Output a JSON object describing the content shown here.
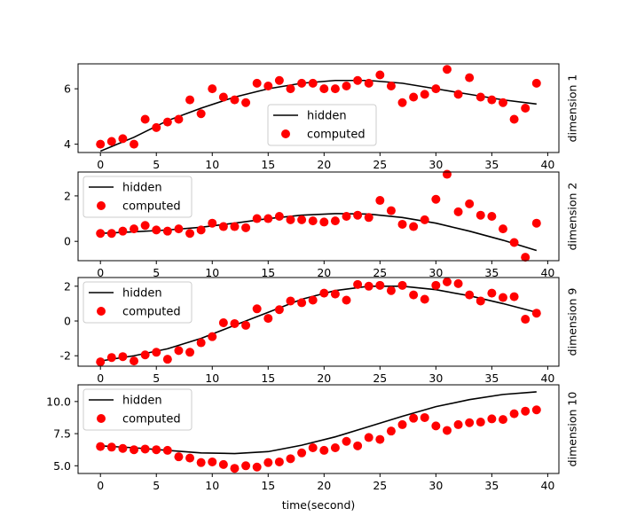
{
  "colors": {
    "hidden": "#000000",
    "computed": "#ff0000",
    "background": "#ffffff",
    "frame": "#000000",
    "legend_border": "#cccccc"
  },
  "chart_data": [
    {
      "type": "scatter",
      "ylabel": "dimension 1",
      "xlim": [
        -2,
        41
      ],
      "ylim": [
        3.7,
        6.9
      ],
      "xticks": [
        0,
        5,
        10,
        15,
        20,
        25,
        30,
        35,
        40
      ],
      "yticks": [
        4,
        6
      ],
      "legend_position": "lower-center",
      "series": [
        {
          "name": "hidden",
          "kind": "line",
          "x": [
            0,
            3,
            6,
            9,
            12,
            15,
            18,
            21,
            24,
            27,
            30,
            33,
            36,
            39
          ],
          "y": [
            3.75,
            4.25,
            4.85,
            5.3,
            5.7,
            6.0,
            6.2,
            6.3,
            6.3,
            6.2,
            6.0,
            5.8,
            5.6,
            5.45
          ]
        },
        {
          "name": "computed",
          "kind": "scatter",
          "x": [
            0,
            1,
            2,
            3,
            4,
            5,
            6,
            7,
            8,
            9,
            10,
            11,
            12,
            13,
            14,
            15,
            16,
            17,
            18,
            19,
            20,
            21,
            22,
            23,
            24,
            25,
            26,
            27,
            28,
            29,
            30,
            31,
            32,
            33,
            34,
            35,
            36,
            37,
            38,
            39
          ],
          "y": [
            4.0,
            4.1,
            4.2,
            4.0,
            4.9,
            4.6,
            4.8,
            4.9,
            5.6,
            5.1,
            6.0,
            5.7,
            5.6,
            5.5,
            6.2,
            6.1,
            6.3,
            6.0,
            6.2,
            6.2,
            6.0,
            6.0,
            6.1,
            6.3,
            6.2,
            6.5,
            6.1,
            5.5,
            5.7,
            5.8,
            6.0,
            6.7,
            5.8,
            6.4,
            5.7,
            5.6,
            5.5,
            4.9,
            5.3,
            6.2
          ]
        }
      ]
    },
    {
      "type": "scatter",
      "ylabel": "dimension 2",
      "xlim": [
        -2,
        41
      ],
      "ylim": [
        -0.85,
        3.05
      ],
      "xticks": [
        0,
        5,
        10,
        15,
        20,
        25,
        30,
        35,
        40
      ],
      "yticks": [
        0,
        2
      ],
      "legend_position": "upper-left",
      "series": [
        {
          "name": "hidden",
          "kind": "line",
          "x": [
            0,
            3,
            6,
            9,
            12,
            15,
            18,
            21,
            24,
            27,
            30,
            33,
            36,
            39
          ],
          "y": [
            0.35,
            0.42,
            0.5,
            0.62,
            0.8,
            1.0,
            1.15,
            1.22,
            1.2,
            1.05,
            0.8,
            0.45,
            0.05,
            -0.4
          ]
        },
        {
          "name": "computed",
          "kind": "scatter",
          "x": [
            0,
            1,
            2,
            3,
            4,
            5,
            6,
            7,
            8,
            9,
            10,
            11,
            12,
            13,
            14,
            15,
            16,
            17,
            18,
            19,
            20,
            21,
            22,
            23,
            24,
            25,
            26,
            27,
            28,
            29,
            30,
            31,
            32,
            33,
            34,
            35,
            36,
            37,
            38,
            39
          ],
          "y": [
            0.35,
            0.35,
            0.45,
            0.55,
            0.7,
            0.5,
            0.45,
            0.55,
            0.35,
            0.5,
            0.8,
            0.65,
            0.65,
            0.6,
            1.0,
            1.0,
            1.1,
            0.95,
            0.95,
            0.9,
            0.85,
            0.9,
            1.1,
            1.15,
            1.05,
            1.8,
            1.35,
            0.75,
            0.65,
            0.95,
            1.85,
            2.95,
            1.3,
            1.65,
            1.15,
            1.1,
            0.55,
            -0.05,
            -0.7,
            0.8
          ]
        }
      ]
    },
    {
      "type": "scatter",
      "ylabel": "dimension 9",
      "xlim": [
        -2,
        41
      ],
      "ylim": [
        -2.6,
        2.5
      ],
      "xticks": [
        0,
        5,
        10,
        15,
        20,
        25,
        30,
        35,
        40
      ],
      "yticks": [
        -2,
        0,
        2
      ],
      "legend_position": "upper-left",
      "series": [
        {
          "name": "hidden",
          "kind": "line",
          "x": [
            0,
            3,
            6,
            9,
            12,
            15,
            18,
            21,
            24,
            27,
            30,
            33,
            36,
            39
          ],
          "y": [
            -2.3,
            -2.0,
            -1.6,
            -1.0,
            -0.25,
            0.5,
            1.25,
            1.75,
            2.0,
            2.0,
            1.8,
            1.45,
            1.0,
            0.5
          ]
        },
        {
          "name": "computed",
          "kind": "scatter",
          "x": [
            0,
            1,
            2,
            3,
            4,
            5,
            6,
            7,
            8,
            9,
            10,
            11,
            12,
            13,
            14,
            15,
            16,
            17,
            18,
            19,
            20,
            21,
            22,
            23,
            24,
            25,
            26,
            27,
            28,
            29,
            30,
            31,
            32,
            33,
            34,
            35,
            36,
            37,
            38,
            39
          ],
          "y": [
            -2.35,
            -2.1,
            -2.05,
            -2.3,
            -1.95,
            -1.8,
            -2.2,
            -1.7,
            -1.8,
            -1.25,
            -0.9,
            -0.1,
            -0.15,
            -0.25,
            0.7,
            0.15,
            0.65,
            1.15,
            1.05,
            1.2,
            1.6,
            1.55,
            1.2,
            2.1,
            2.0,
            2.05,
            1.75,
            2.05,
            1.5,
            1.25,
            2.05,
            2.25,
            2.15,
            1.5,
            1.15,
            1.6,
            1.35,
            1.4,
            0.1,
            0.45
          ]
        }
      ]
    },
    {
      "type": "scatter",
      "ylabel": "dimension 10",
      "xlabel": "time(second)",
      "xlim": [
        -2,
        41
      ],
      "ylim": [
        4.4,
        11.3
      ],
      "xticks": [
        0,
        5,
        10,
        15,
        20,
        25,
        30,
        35,
        40
      ],
      "yticks": [
        5.0,
        7.5,
        10.0
      ],
      "ytick_labels": [
        "5.0",
        "7.5",
        "10.0"
      ],
      "legend_position": "upper-left",
      "series": [
        {
          "name": "hidden",
          "kind": "line",
          "x": [
            0,
            3,
            6,
            9,
            12,
            15,
            18,
            21,
            24,
            27,
            30,
            33,
            36,
            39
          ],
          "y": [
            6.55,
            6.4,
            6.2,
            6.0,
            5.95,
            6.1,
            6.6,
            7.25,
            8.05,
            8.85,
            9.6,
            10.15,
            10.55,
            10.75
          ]
        },
        {
          "name": "computed",
          "kind": "scatter",
          "x": [
            0,
            1,
            2,
            3,
            4,
            5,
            6,
            7,
            8,
            9,
            10,
            11,
            12,
            13,
            14,
            15,
            16,
            17,
            18,
            19,
            20,
            21,
            22,
            23,
            24,
            25,
            26,
            27,
            28,
            29,
            30,
            31,
            32,
            33,
            34,
            35,
            36,
            37,
            38,
            39
          ],
          "y": [
            6.5,
            6.45,
            6.35,
            6.25,
            6.3,
            6.25,
            6.2,
            5.7,
            5.6,
            5.25,
            5.3,
            5.1,
            4.8,
            5.0,
            4.9,
            5.25,
            5.3,
            5.55,
            6.0,
            6.4,
            6.2,
            6.4,
            6.9,
            6.55,
            7.2,
            7.05,
            7.7,
            8.2,
            8.7,
            8.75,
            8.1,
            7.75,
            8.2,
            8.35,
            8.4,
            8.65,
            8.6,
            9.05,
            9.25,
            9.35
          ]
        }
      ]
    }
  ]
}
